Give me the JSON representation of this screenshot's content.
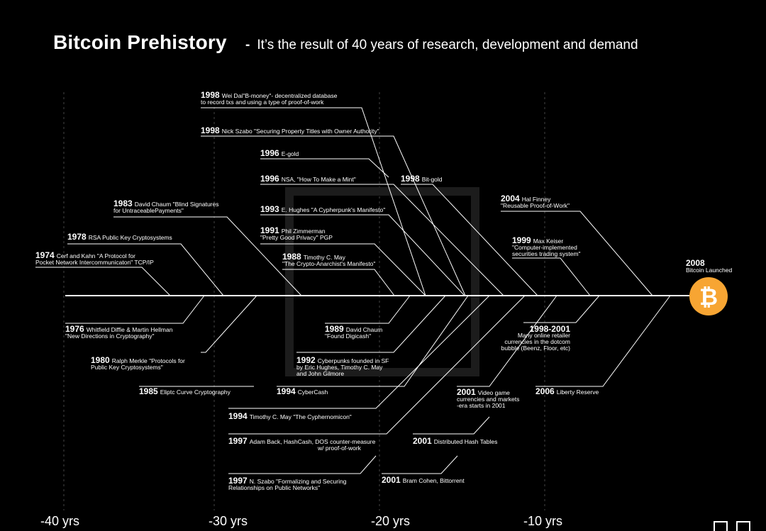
{
  "header": {
    "title": "Bitcoin Prehistory",
    "separator": "-",
    "subtitle": "It’s the result of 40 years of research, development and demand"
  },
  "events_top": [
    {
      "year": "1998",
      "text": "Wei Dai\"B-money\"- decentralized database",
      "text2": "to record txs and using a type of proof-of-work"
    },
    {
      "year": "1998",
      "text": "Nick Szabo \"Securing Property Titles with Owner Authority\"",
      "text2": ""
    },
    {
      "year": "1996",
      "text": "E-gold",
      "text2": ""
    },
    {
      "year": "1996",
      "text": "NSA, \"How To Make a Mint\"",
      "text2": ""
    },
    {
      "year": "1998",
      "text": "Bit-gold",
      "text2": ""
    },
    {
      "year": "1983",
      "text": "David Chaum \"Blind Signatures",
      "text2": "for UntraceablePayments\""
    },
    {
      "year": "1993",
      "text": "E. Hughes \"A Cypherpunk's Manifesto\"",
      "text2": ""
    },
    {
      "year": "2004",
      "text": "Hal Finney",
      "text2": "\"Reusable Proof-of-Work\""
    },
    {
      "year": "1978",
      "text": "RSA Public Key Cryptosystems",
      "text2": ""
    },
    {
      "year": "1991",
      "text": "Phil Zimmerman",
      "text2": "\"Pretty Good Privacy\" PGP"
    },
    {
      "year": "1999",
      "text": "Max Keiser",
      "text2": "\"Computer-implemented\nsecurities trading system\""
    },
    {
      "year": "1974",
      "text": "Cerf and Kahn \"A Protocol for",
      "text2": "Pocket Network Intercommunicaton\" TCP/IP"
    },
    {
      "year": "1988",
      "text": "Timothy C. May",
      "text2": "\"The Crypto-Anarchist's Manifesto\""
    }
  ],
  "events_bottom": [
    {
      "year": "1976",
      "text": "Whitfield Diffie & Martin Hellman",
      "text2": "\"New Directions in Cryptography\""
    },
    {
      "year": "1989",
      "text": "David Chaum",
      "text2": "\"Found Digicash\""
    },
    {
      "year": "1998-2001",
      "text": "",
      "text2": "Many online retailer\ncurrencies in the dotcom\nbubble (Beenz, Floor, etc)"
    },
    {
      "year": "1980",
      "text": "Ralph Merkle \"Protocols for",
      "text2": "Public Key Cryptosystems\""
    },
    {
      "year": "1992",
      "text": "Cyberpunks founded in SF",
      "text2": "by Eric Hughes, Timothy C. May\nand John Gilmore"
    },
    {
      "year": "1985",
      "text": "Eliptc Curve Cryptography",
      "text2": ""
    },
    {
      "year": "1994",
      "text": "CyberCash",
      "text2": ""
    },
    {
      "year": "2001",
      "text": "Video game",
      "text2": "currencies and markets\n-era starts in 2001"
    },
    {
      "year": "2006",
      "text": "Liberty Reserve",
      "text2": ""
    },
    {
      "year": "1994",
      "text": "Timothy C. May \"The Cyphernomicon\"",
      "text2": ""
    },
    {
      "year": "1997",
      "text": "Adam Back, HashCash, DOS counter-measure",
      "text2": "w/ proof-of-work"
    },
    {
      "year": "2001",
      "text": "Distributed Hash Tables",
      "text2": ""
    },
    {
      "year": "1997",
      "text": "N. Szabo \"Formalizing and Securing",
      "text2": "Relationships on Public Networks\""
    },
    {
      "year": "2001",
      "text": "Bram Cohen, Bittorrent",
      "text2": ""
    }
  ],
  "endpoint": {
    "year": "2008",
    "label": "Bitcoin Launched",
    "icon": "bitcoin-icon",
    "color": "#F7A533"
  },
  "axis_labels": [
    "-40 yrs",
    "-30 yrs",
    "-20 yrs",
    "-10 yrs"
  ]
}
